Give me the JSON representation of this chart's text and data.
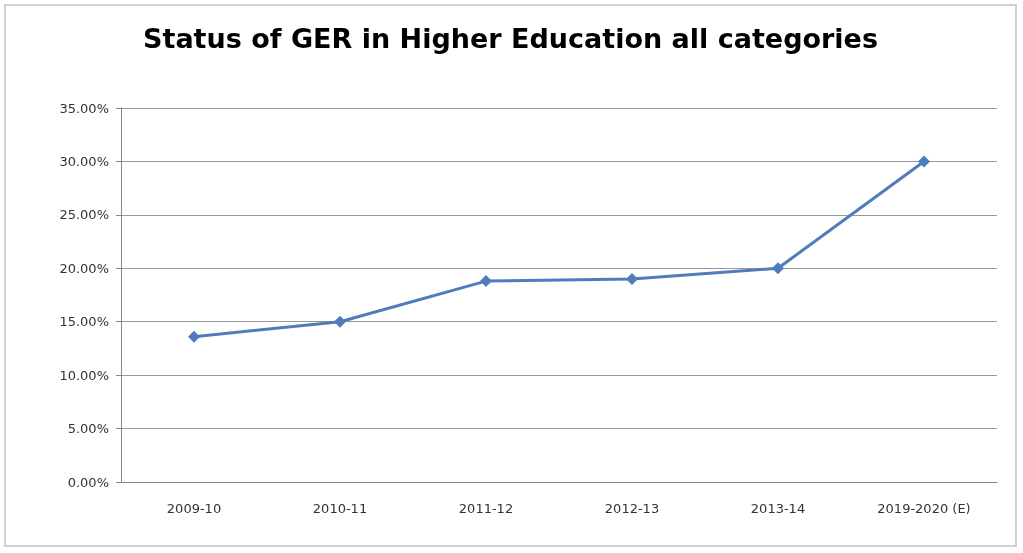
{
  "chart_data": {
    "type": "line",
    "title": "Status of GER in Higher Education all categories",
    "categories": [
      "2009-10",
      "2010-11",
      "2011-12",
      "2012-13",
      "2013-14",
      "2019-2020 (E)"
    ],
    "series": [
      {
        "color": "#4f7cba",
        "values": [
          13.6,
          15.0,
          18.8,
          19.0,
          20.0,
          30.0
        ]
      }
    ],
    "ylim": [
      0,
      35
    ],
    "yticks": [
      {
        "value": 0,
        "label": "0.00%"
      },
      {
        "value": 5,
        "label": "5.00%"
      },
      {
        "value": 10,
        "label": "10.00%"
      },
      {
        "value": 15,
        "label": "15.00%"
      },
      {
        "value": 20,
        "label": "20.00%"
      },
      {
        "value": 25,
        "label": "25.00%"
      },
      {
        "value": 30,
        "label": "30.00%"
      },
      {
        "value": 35,
        "label": "35.00%"
      }
    ],
    "grid": "y",
    "marker": "diamond",
    "line_style": "solid"
  }
}
